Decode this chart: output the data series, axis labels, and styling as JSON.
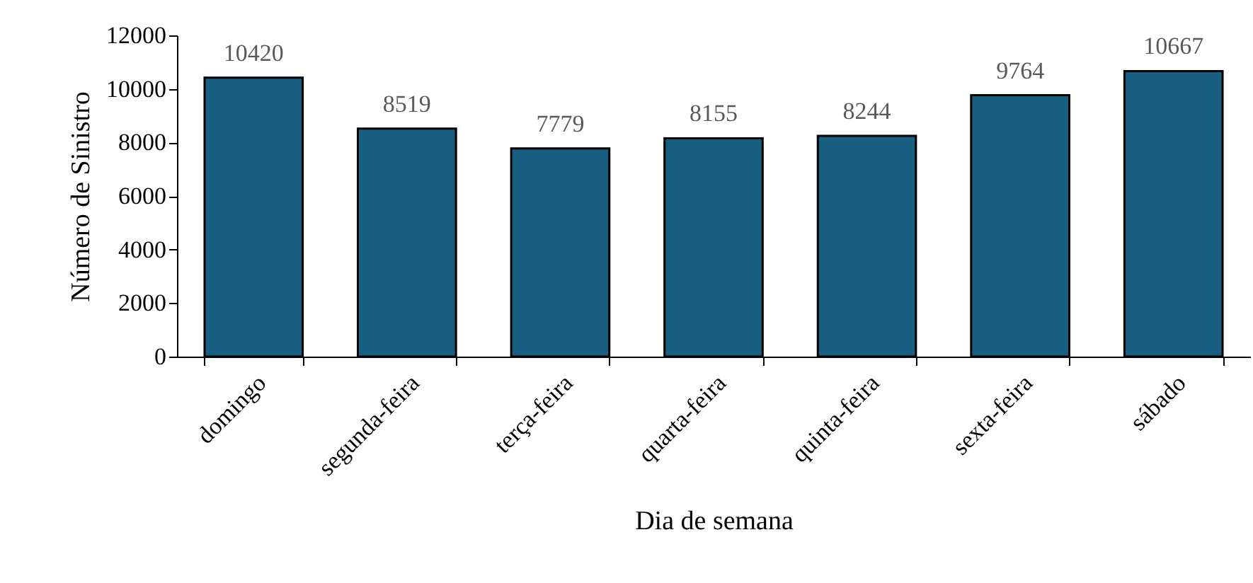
{
  "chart_data": {
    "type": "bar",
    "xlabel": "Dia de semana",
    "ylabel": "Número de Sinistro",
    "categories": [
      "domingo",
      "segunda-feira",
      "terça-feira",
      "quarta-feira",
      "quinta-feira",
      "sexta-feira",
      "sábado"
    ],
    "values": [
      10420,
      8519,
      7779,
      8155,
      8244,
      9764,
      10667
    ],
    "color": "#185e80",
    "ylim": [
      0,
      12000
    ],
    "yticks": [
      0,
      2000,
      4000,
      6000,
      8000,
      10000,
      12000
    ],
    "grid": false,
    "data_labels": true
  }
}
